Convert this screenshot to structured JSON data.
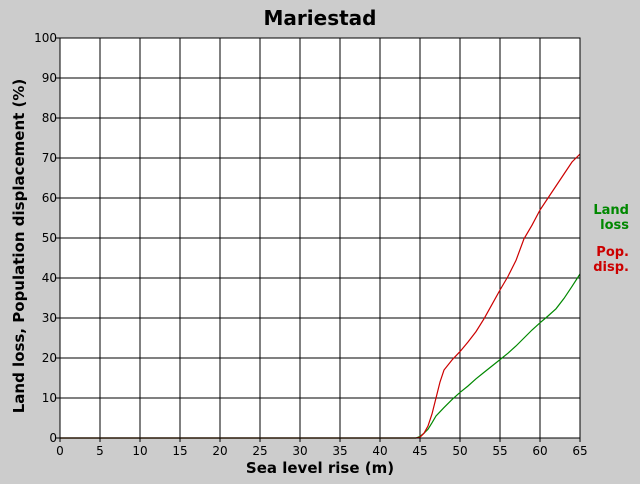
{
  "chart_data": {
    "type": "line",
    "title": "Mariestad",
    "xlabel": "Sea level rise (m)",
    "ylabel": "Land loss, Population displacement (%)",
    "xlim": [
      0,
      65
    ],
    "ylim": [
      0,
      100
    ],
    "xticks": [
      0,
      5,
      10,
      15,
      20,
      25,
      30,
      35,
      40,
      45,
      50,
      55,
      60,
      65
    ],
    "yticks": [
      0,
      10,
      20,
      30,
      40,
      50,
      60,
      70,
      80,
      90,
      100
    ],
    "grid": true,
    "legend_position": "right",
    "series": [
      {
        "name": "Land\nloss",
        "color": "#008800",
        "x": [
          0,
          44.5,
          45,
          45.5,
          46,
          46.5,
          47,
          48,
          49,
          50,
          51,
          52,
          53,
          54,
          55,
          56,
          57,
          58,
          59,
          60,
          61,
          62,
          63,
          64,
          65
        ],
        "y": [
          0,
          0,
          0.4,
          1.2,
          2.2,
          3.8,
          5.5,
          7.6,
          9.6,
          11.4,
          13.0,
          14.8,
          16.4,
          18.0,
          19.6,
          21.2,
          23.0,
          25.0,
          27.0,
          28.8,
          30.5,
          32.3,
          34.9,
          37.9,
          41.0
        ]
      },
      {
        "name": "Pop.\ndisp.",
        "color": "#cc0000",
        "x": [
          0,
          44.5,
          45,
          45.5,
          46,
          46.5,
          47,
          47.5,
          48,
          49,
          50,
          51,
          52,
          53,
          54,
          55,
          56,
          57,
          58,
          59,
          60,
          61,
          62,
          63,
          64,
          65
        ],
        "y": [
          0,
          0,
          0.2,
          1.2,
          3.0,
          6.0,
          10.0,
          14.0,
          17.0,
          19.5,
          21.6,
          24.0,
          26.6,
          29.8,
          33.4,
          37.0,
          40.4,
          44.4,
          49.8,
          53.2,
          57.0,
          60.0,
          63.0,
          66.0,
          69.0,
          71.0
        ]
      }
    ]
  }
}
